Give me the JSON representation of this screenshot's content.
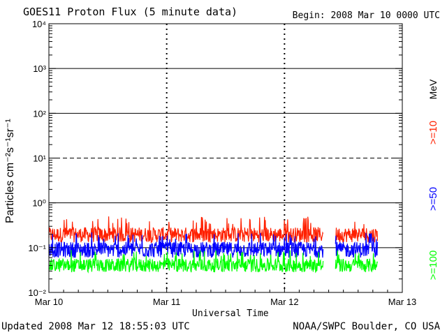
{
  "header": {
    "title": "GOES11 Proton Flux (5 minute data)",
    "begin": "Begin: 2008 Mar 10 0000 UTC"
  },
  "footer": {
    "updated": "Updated 2008 Mar 12 18:55:03 UTC",
    "credit": "NOAA/SWPC Boulder, CO USA"
  },
  "chart_data": {
    "type": "line",
    "title": "GOES11 Proton Flux (5 minute data)",
    "xlabel": "Universal Time",
    "ylabel": "Particles cm⁻²s⁻¹sr⁻¹",
    "y_scale": "log",
    "ylim": [
      0.01,
      10000
    ],
    "y_ticks": [
      "10⁻²",
      "10⁻¹",
      "10⁰",
      "10¹",
      "10²",
      "10³",
      "10⁴"
    ],
    "x_ticks": [
      "Mar 10",
      "Mar 11",
      "Mar 12",
      "Mar 13"
    ],
    "x_range_days": [
      0,
      3
    ],
    "legend_unit": "MeV",
    "series": [
      {
        "name": ">=10",
        "color": "#ff2000",
        "typical": 0.18,
        "spread": [
          0.12,
          0.5
        ]
      },
      {
        "name": ">=50",
        "color": "#0000ff",
        "typical": 0.09,
        "spread": [
          0.05,
          0.22
        ]
      },
      {
        "name": ">=100",
        "color": "#00ff00",
        "typical": 0.04,
        "spread": [
          0.025,
          0.09
        ]
      }
    ],
    "data_gaps_days": [
      [
        2.33,
        2.43
      ]
    ],
    "data_end_day": 2.79,
    "reference_lines": [
      {
        "value": 10,
        "style": "dashed"
      },
      {
        "value": 0.1,
        "style": "solid"
      },
      {
        "value": 1,
        "style": "solid"
      },
      {
        "value": 100,
        "style": "solid"
      },
      {
        "value": 1000,
        "style": "solid"
      }
    ],
    "grid": "day-boundary dashed verticals"
  }
}
